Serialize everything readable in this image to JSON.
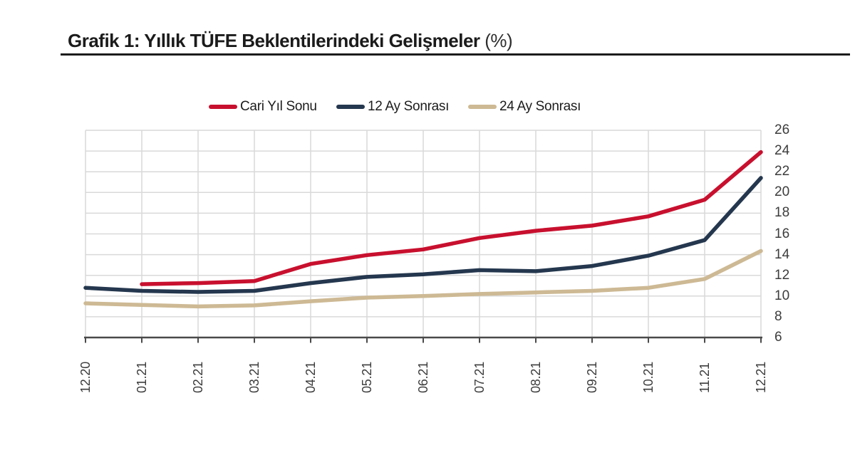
{
  "title": {
    "text": "Grafik 1: Yıllık TÜFE Beklentilerindeki Gelişmeler",
    "suffix": " (%)"
  },
  "chart_data": {
    "type": "line",
    "x": [
      "12.20",
      "01.21",
      "02.21",
      "03.21",
      "04.21",
      "05.21",
      "06.21",
      "07.21",
      "08.21",
      "09.21",
      "10.21",
      "11.21",
      "12.21"
    ],
    "series": [
      {
        "name": "Cari Yıl Sonu",
        "color": "#C8102E",
        "values": [
          null,
          11.15,
          11.25,
          11.45,
          13.1,
          13.95,
          14.5,
          15.6,
          16.3,
          16.8,
          17.7,
          19.3,
          23.9
        ]
      },
      {
        "name": "12 Ay Sonrası",
        "color": "#24374E",
        "values": [
          10.8,
          10.5,
          10.4,
          10.5,
          11.25,
          11.85,
          12.1,
          12.5,
          12.4,
          12.9,
          13.9,
          15.4,
          21.4
        ]
      },
      {
        "name": "24 Ay Sonrası",
        "color": "#CDB994",
        "values": [
          9.3,
          9.15,
          9.0,
          9.1,
          9.5,
          9.85,
          10.0,
          10.2,
          10.35,
          10.5,
          10.8,
          11.65,
          14.35
        ]
      }
    ],
    "yticks": [
      6,
      8,
      10,
      12,
      14,
      16,
      18,
      20,
      22,
      24,
      26
    ],
    "ylim": [
      6,
      26
    ],
    "grid": true,
    "legend_position": "top",
    "y_axis_side": "right",
    "x_label_rotation": -90
  },
  "colors": {
    "background": "#ffffff",
    "title_text": "#1b1b1b",
    "title_rule": "#1c1c1c",
    "gridline": "#d9d9d9",
    "axis_line": "#4a4a4a",
    "tick_label": "#3c3c3c",
    "legend_text": "#1c1c1c"
  }
}
